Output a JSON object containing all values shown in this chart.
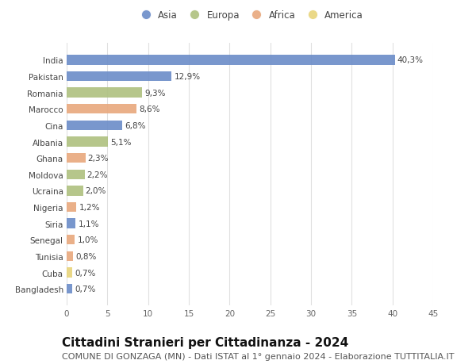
{
  "countries": [
    "India",
    "Pakistan",
    "Romania",
    "Marocco",
    "Cina",
    "Albania",
    "Ghana",
    "Moldova",
    "Ucraina",
    "Nigeria",
    "Siria",
    "Senegal",
    "Tunisia",
    "Cuba",
    "Bangladesh"
  ],
  "values": [
    40.3,
    12.9,
    9.3,
    8.6,
    6.8,
    5.1,
    2.3,
    2.2,
    2.0,
    1.2,
    1.1,
    1.0,
    0.8,
    0.7,
    0.7
  ],
  "labels": [
    "40,3%",
    "12,9%",
    "9,3%",
    "8,6%",
    "6,8%",
    "5,1%",
    "2,3%",
    "2,2%",
    "2,0%",
    "1,2%",
    "1,1%",
    "1,0%",
    "0,8%",
    "0,7%",
    "0,7%"
  ],
  "continents": [
    "Asia",
    "Asia",
    "Europa",
    "Africa",
    "Asia",
    "Europa",
    "Africa",
    "Europa",
    "Europa",
    "Africa",
    "Asia",
    "Africa",
    "Africa",
    "America",
    "Asia"
  ],
  "continent_colors": {
    "Asia": "#6b8cc8",
    "Europa": "#aec07f",
    "Africa": "#e8a87c",
    "America": "#e8d47a"
  },
  "legend_order": [
    "Asia",
    "Europa",
    "Africa",
    "America"
  ],
  "title": "Cittadini Stranieri per Cittadinanza - 2024",
  "subtitle": "COMUNE DI GONZAGA (MN) - Dati ISTAT al 1° gennaio 2024 - Elaborazione TUTTITALIA.IT",
  "xlim": [
    0,
    45
  ],
  "xticks": [
    0,
    5,
    10,
    15,
    20,
    25,
    30,
    35,
    40,
    45
  ],
  "background_color": "#ffffff",
  "plot_background": "#ffffff",
  "grid_color": "#e0e0e0",
  "title_fontsize": 11,
  "subtitle_fontsize": 8,
  "label_fontsize": 7.5,
  "tick_fontsize": 7.5,
  "legend_fontsize": 8.5
}
